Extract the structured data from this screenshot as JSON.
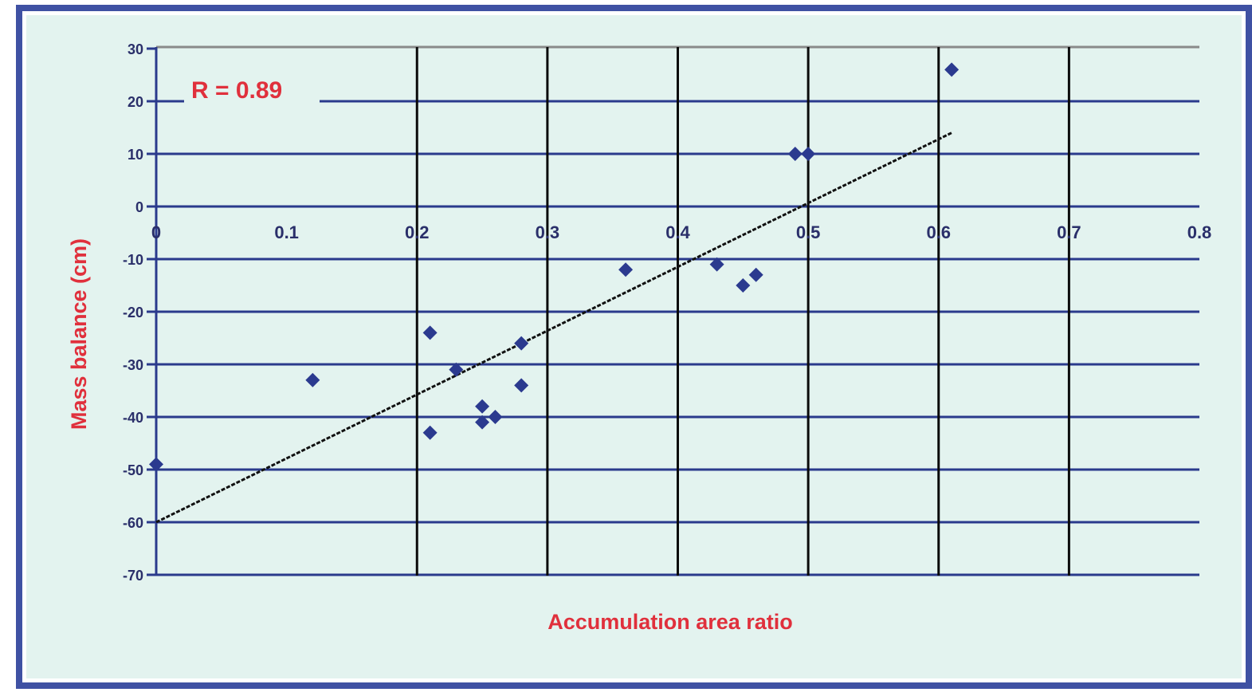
{
  "chart_data": {
    "type": "scatter",
    "title": "",
    "xlabel": "Accumulation area ratio",
    "ylabel": "Mass balance (cm)",
    "annotation": "R = 0.89",
    "xlim": [
      0,
      0.8
    ],
    "ylim": [
      -75,
      30
    ],
    "x_ticks": [
      0,
      0.1,
      0.2,
      0.3,
      0.4,
      0.5,
      0.6,
      0.7,
      0.8
    ],
    "x_tick_labels": [
      "0",
      "0.1",
      "0.2",
      "0.3",
      "0.4",
      "0.5",
      "0.6",
      "0.7",
      "0.8"
    ],
    "y_ticks": [
      30,
      20,
      10,
      0,
      -10,
      -20,
      -30,
      -40,
      -50,
      -60,
      -70
    ],
    "y_tick_labels": [
      "30",
      "20",
      "10",
      "0",
      "-10",
      "-20",
      "-30",
      "-40",
      "-50",
      "-60",
      "-70"
    ],
    "grid": true,
    "series": [
      {
        "points": [
          {
            "x": 0.0,
            "y": -49
          },
          {
            "x": 0.12,
            "y": -33
          },
          {
            "x": 0.21,
            "y": -24
          },
          {
            "x": 0.21,
            "y": -43
          },
          {
            "x": 0.23,
            "y": -31
          },
          {
            "x": 0.25,
            "y": -38
          },
          {
            "x": 0.25,
            "y": -41
          },
          {
            "x": 0.26,
            "y": -40
          },
          {
            "x": 0.28,
            "y": -26
          },
          {
            "x": 0.28,
            "y": -34
          },
          {
            "x": 0.36,
            "y": -12
          },
          {
            "x": 0.43,
            "y": -11
          },
          {
            "x": 0.45,
            "y": -15
          },
          {
            "x": 0.46,
            "y": -13
          },
          {
            "x": 0.49,
            "y": 10
          },
          {
            "x": 0.5,
            "y": 10
          },
          {
            "x": 0.61,
            "y": 26
          }
        ]
      }
    ],
    "trendline": {
      "x": [
        0.0,
        0.61
      ],
      "y": [
        -60,
        14
      ]
    },
    "colors": {
      "frame": "#3f51a3",
      "plot_background": "#e3f3ef",
      "horizontal_grid": "#2a3a8c",
      "vertical_grid": "#0a0a0a",
      "top_border": "#8a8a8a",
      "points": "#2b3a8f",
      "trendline": "#111111",
      "label_text": "#e0303c"
    }
  }
}
